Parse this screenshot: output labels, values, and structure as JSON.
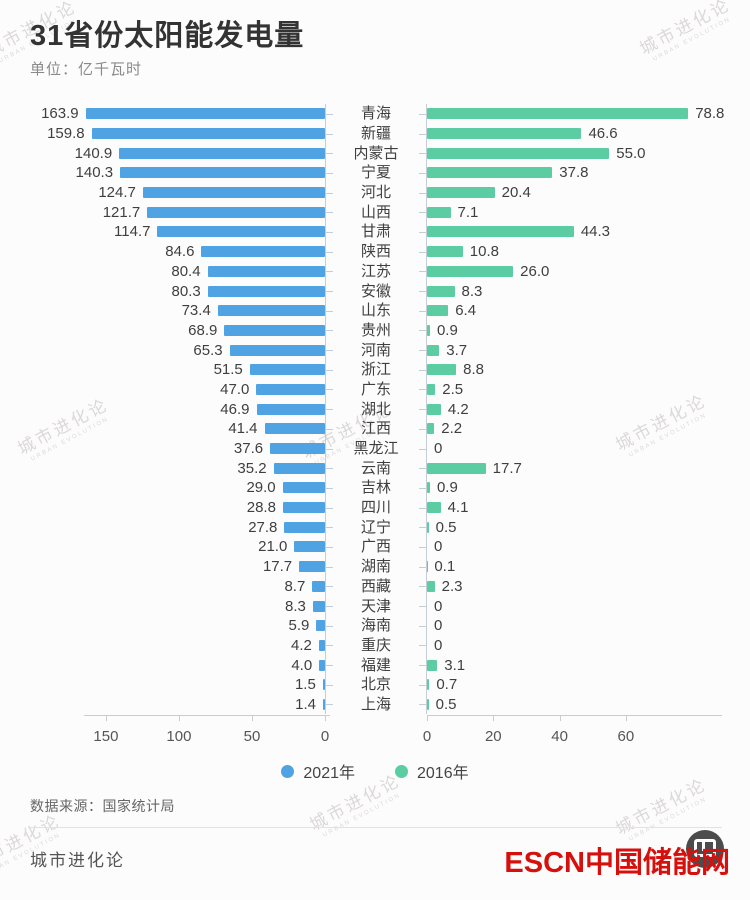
{
  "page": {
    "title": "31省份太阳能发电量",
    "subtitle": "单位：亿千瓦时",
    "source": "数据来源：国家统计局",
    "brand": "城市进化论",
    "logo_text": "ESCN中国储能网",
    "watermark": {
      "line1": "城市进化论",
      "line2": "URBAN EVOLUTION"
    }
  },
  "chart_data": {
    "type": "bar",
    "variant": "diverging-horizontal",
    "title": "31省份太阳能发电量",
    "unit": "亿千瓦时",
    "grid": false,
    "legend_position": "bottom",
    "categories": [
      "青海",
      "新疆",
      "内蒙古",
      "宁夏",
      "河北",
      "山西",
      "甘肃",
      "陕西",
      "江苏",
      "安徽",
      "山东",
      "贵州",
      "河南",
      "浙江",
      "广东",
      "湖北",
      "江西",
      "黑龙江",
      "云南",
      "吉林",
      "四川",
      "辽宁",
      "广西",
      "湖南",
      "西藏",
      "天津",
      "海南",
      "重庆",
      "福建",
      "北京",
      "上海"
    ],
    "series": [
      {
        "name": "2021年",
        "color": "#4FA3E3",
        "side": "left",
        "values": [
          163.9,
          159.8,
          140.9,
          140.3,
          124.7,
          121.7,
          114.7,
          84.6,
          80.4,
          80.3,
          73.4,
          68.9,
          65.3,
          51.5,
          47.0,
          46.9,
          41.4,
          37.6,
          35.2,
          29.0,
          28.8,
          27.8,
          21.0,
          17.7,
          8.7,
          8.3,
          5.9,
          4.2,
          4.0,
          1.5,
          1.4
        ],
        "labels": [
          "163.9",
          "159.8",
          "140.9",
          "140.3",
          "124.7",
          "121.7",
          "114.7",
          "84.6",
          "80.4",
          "80.3",
          "73.4",
          "68.9",
          "65.3",
          "51.5",
          "47.0",
          "46.9",
          "41.4",
          "37.6",
          "35.2",
          "29.0",
          "28.8",
          "27.8",
          "21.0",
          "17.7",
          "8.7",
          "8.3",
          "5.9",
          "4.2",
          "4.0",
          "1.5",
          "1.4"
        ]
      },
      {
        "name": "2016年",
        "color": "#5CCDA2",
        "side": "right",
        "values": [
          78.8,
          46.6,
          55.0,
          37.8,
          20.4,
          7.1,
          44.3,
          10.8,
          26.0,
          8.3,
          6.4,
          0.9,
          3.7,
          8.8,
          2.5,
          4.2,
          2.2,
          0,
          17.7,
          0.9,
          4.1,
          0.5,
          0,
          0.1,
          2.3,
          0,
          0,
          0,
          3.1,
          0.7,
          0.5
        ],
        "labels": [
          "78.8",
          "46.6",
          "55.0",
          "37.8",
          "20.4",
          "7.1",
          "44.3",
          "10.8",
          "26.0",
          "8.3",
          "6.4",
          "0.9",
          "3.7",
          "8.8",
          "2.5",
          "4.2",
          "2.2",
          "0",
          "17.7",
          "0.9",
          "4.1",
          "0.5",
          "0",
          "0.1",
          "2.3",
          "0",
          "0",
          "0",
          "3.1",
          "0.7",
          "0.5"
        ]
      }
    ],
    "left_axis": {
      "series": "2021年",
      "direction": "right-to-left",
      "ticks": [
        150,
        100,
        50,
        0
      ],
      "tick_labels": [
        "150",
        "100",
        "50",
        "0"
      ],
      "max": 165
    },
    "right_axis": {
      "series": "2016年",
      "direction": "left-to-right",
      "ticks": [
        0,
        20,
        40,
        60
      ],
      "tick_labels": [
        "0",
        "20",
        "40",
        "60"
      ],
      "max": 89
    }
  }
}
